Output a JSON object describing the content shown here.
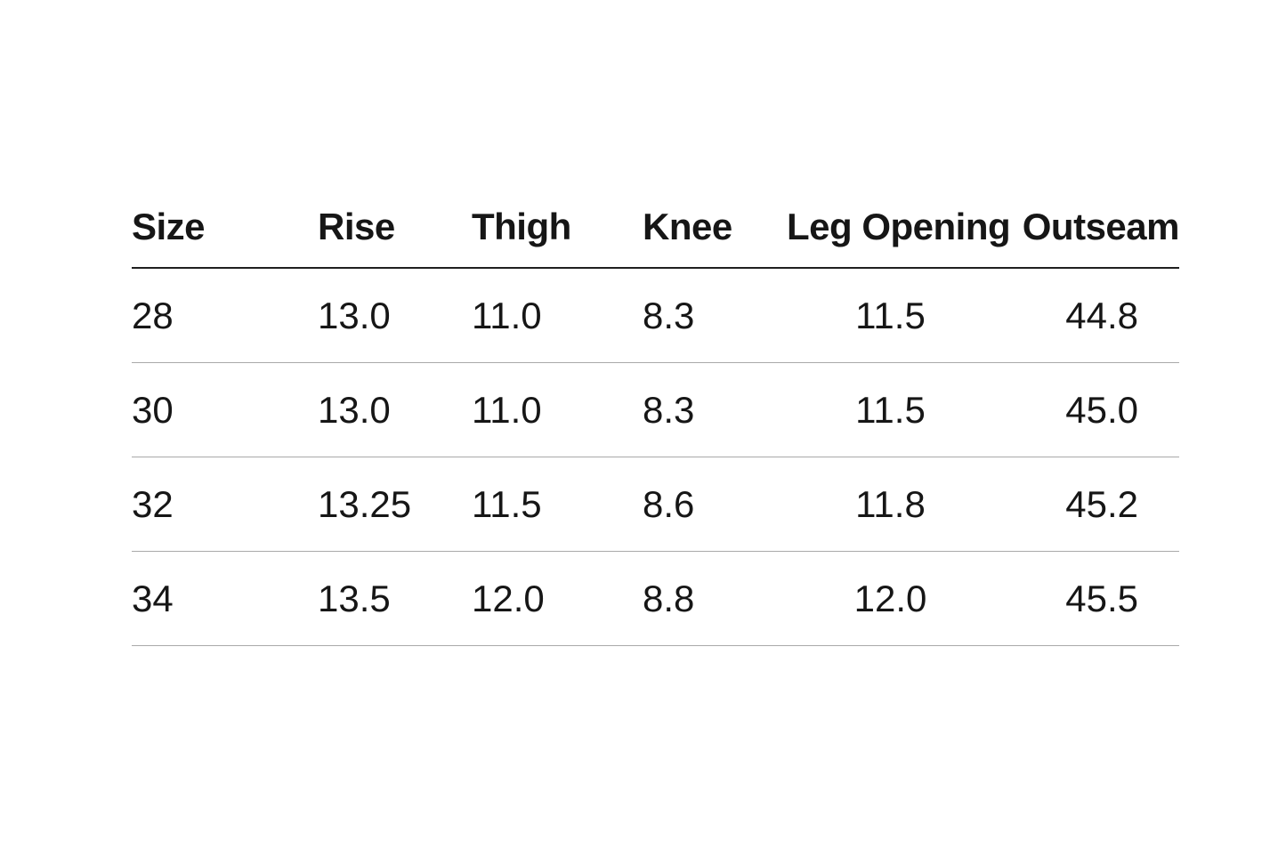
{
  "chart_data": {
    "type": "table",
    "title": "",
    "columns": [
      "Size",
      "Rise",
      "Thigh",
      "Knee",
      "Leg Opening",
      "Outseam"
    ],
    "rows": [
      [
        "28",
        "13.0",
        "11.0",
        "8.3",
        "11.5",
        "44.8"
      ],
      [
        "30",
        "13.0",
        "11.0",
        "8.3",
        "11.5",
        "45.0"
      ],
      [
        "32",
        "13.25",
        "11.5",
        "8.6",
        "11.8",
        "45.2"
      ],
      [
        "34",
        "13.5",
        "12.0",
        "8.8",
        "12.0",
        "45.5"
      ]
    ],
    "column_alignments": [
      "left",
      "left",
      "left",
      "left",
      "center",
      "right"
    ],
    "grid": "horizontal-rules-only",
    "legend": "none"
  },
  "colors": {
    "background": "#ffffff",
    "text": "#161616",
    "header_rule": "#1f1f1f",
    "row_rule": "#a9a9a9"
  }
}
